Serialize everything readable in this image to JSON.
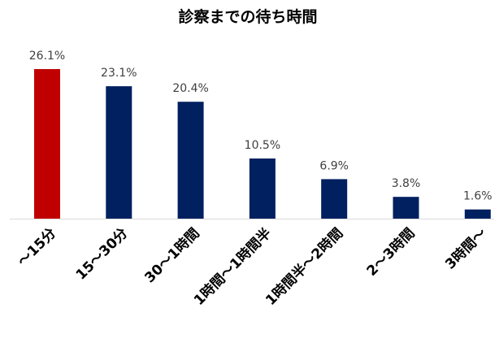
{
  "chart_data": {
    "type": "bar",
    "title": "診察までの待ち時間",
    "categories": [
      "～15分",
      "15～30分",
      "30～1時間",
      "1時間～1時間半",
      "1時間半～2時間",
      "2～3時間",
      "3時間～"
    ],
    "values": [
      26.1,
      23.1,
      20.4,
      10.5,
      6.9,
      3.8,
      1.6
    ],
    "data_labels": [
      "26.1%",
      "23.1%",
      "20.4%",
      "10.5%",
      "6.9%",
      "3.8%",
      "1.6%"
    ],
    "unit": "%",
    "ylim": [
      0,
      26.1
    ],
    "grid": false,
    "legend": "none",
    "colors": {
      "highlight": "#C00000",
      "default": "#002060",
      "axis": "#D9D9D9",
      "label": "#404040"
    },
    "highlight_index": 0
  }
}
